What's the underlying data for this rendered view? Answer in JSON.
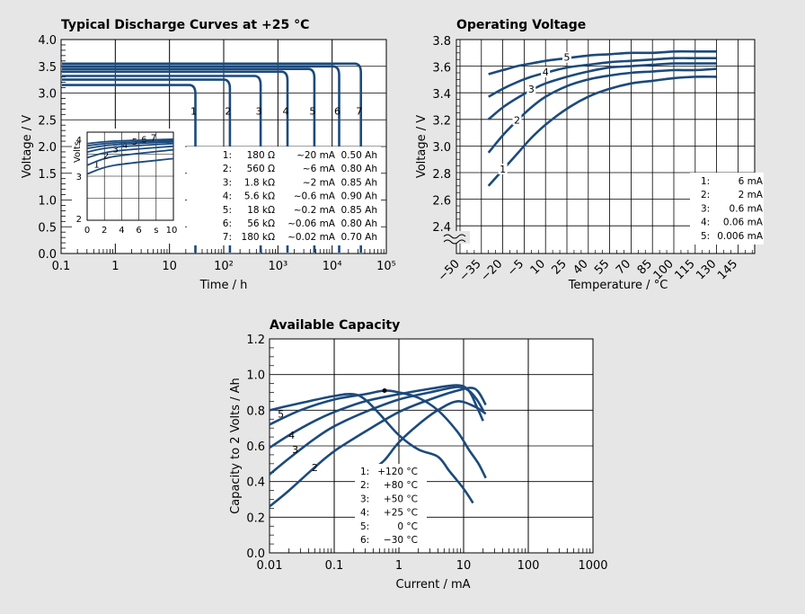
{
  "chart_data": [
    {
      "type": "line",
      "title": "Typical Discharge Curves at +25 °C",
      "xlabel": "Time / h",
      "ylabel": "Voltage / V",
      "xscale": "log",
      "xlim": [
        0.1,
        100000
      ],
      "ylim": [
        0.0,
        4.0
      ],
      "xticks": [
        "0.1",
        "1",
        "10",
        "10²",
        "10³",
        "10⁴",
        "10⁵"
      ],
      "yticks": [
        "0.0",
        "0.5",
        "1.0",
        "1.5",
        "2.0",
        "2.5",
        "3.0",
        "3.5",
        "4.0"
      ],
      "series": [
        {
          "name": "1",
          "plateau_v": 3.15,
          "end_h": 30
        },
        {
          "name": "2",
          "plateau_v": 3.25,
          "end_h": 130
        },
        {
          "name": "3",
          "plateau_v": 3.32,
          "end_h": 480
        },
        {
          "name": "4",
          "plateau_v": 3.4,
          "end_h": 1500
        },
        {
          "name": "5",
          "plateau_v": 3.45,
          "end_h": 4700
        },
        {
          "name": "6",
          "plateau_v": 3.5,
          "end_h": 13500
        },
        {
          "name": "7",
          "plateau_v": 3.55,
          "end_h": 34000
        }
      ],
      "legend": [
        {
          "n": "1:",
          "load": "180 Ω",
          "current": "~20 mA",
          "capacity": "0.50 Ah"
        },
        {
          "n": "2:",
          "load": "560 Ω",
          "current": "~6 mA",
          "capacity": "0.80 Ah"
        },
        {
          "n": "3:",
          "load": "1.8 kΩ",
          "current": "~2 mA",
          "capacity": "0.85 Ah"
        },
        {
          "n": "4:",
          "load": "5.6 kΩ",
          "current": "~0.6 mA",
          "capacity": "0.90 Ah"
        },
        {
          "n": "5:",
          "load": "18 kΩ",
          "current": "~0.2 mA",
          "capacity": "0.85 Ah"
        },
        {
          "n": "6:",
          "load": "56 kΩ",
          "current": "~0.06 mA",
          "capacity": "0.80 Ah"
        },
        {
          "n": "7:",
          "load": "180 kΩ",
          "current": "~0.02 mA",
          "capacity": "0.70 Ah"
        }
      ],
      "legend_position": "bottom-right",
      "inset": {
        "ylabel": "Volts",
        "xunit": "s",
        "xticks": [
          "0",
          "2",
          "4",
          "6",
          "10"
        ],
        "yticks": [
          "2",
          "3",
          "4"
        ],
        "xlim": [
          0,
          10
        ],
        "ylim": [
          2,
          4
        ],
        "series": [
          {
            "name": "1",
            "y": [
              3.05,
              3.4
            ]
          },
          {
            "name": "2",
            "y": [
              3.25,
              3.6
            ]
          },
          {
            "name": "3",
            "y": [
              3.42,
              3.68
            ]
          },
          {
            "name": "4",
            "y": [
              3.55,
              3.74
            ]
          },
          {
            "name": "5",
            "y": [
              3.63,
              3.78
            ]
          },
          {
            "name": "6",
            "y": [
              3.69,
              3.81
            ]
          },
          {
            "name": "7",
            "y": [
              3.74,
              3.84
            ]
          }
        ]
      }
    },
    {
      "type": "line",
      "title": "Operating Voltage",
      "xlabel": "Temperature / °C",
      "ylabel": "Voltage / V",
      "xlim": [
        -50,
        145
      ],
      "ylim": [
        2.4,
        3.8
      ],
      "axis_break": true,
      "xticks": [
        "−50",
        "−35",
        "−20",
        "−5",
        "10",
        "25",
        "40",
        "55",
        "70",
        "85",
        "100",
        "115",
        "130",
        "145"
      ],
      "yticks": [
        "2.4",
        "2.6",
        "2.8",
        "3.0",
        "3.2",
        "3.4",
        "3.6",
        "3.8"
      ],
      "series": [
        {
          "name": "1",
          "x": [
            -30,
            -20,
            -10,
            0,
            10,
            25,
            40,
            55,
            70,
            85,
            100,
            115,
            130
          ],
          "y": [
            2.7,
            2.82,
            2.94,
            3.06,
            3.16,
            3.28,
            3.37,
            3.43,
            3.47,
            3.49,
            3.51,
            3.52,
            3.52
          ]
        },
        {
          "name": "2",
          "x": [
            -30,
            -20,
            -10,
            0,
            10,
            25,
            40,
            55,
            70,
            85,
            100,
            115,
            130
          ],
          "y": [
            2.95,
            3.08,
            3.19,
            3.29,
            3.37,
            3.45,
            3.5,
            3.53,
            3.55,
            3.56,
            3.57,
            3.57,
            3.58
          ]
        },
        {
          "name": "3",
          "x": [
            -30,
            -20,
            -10,
            0,
            10,
            25,
            40,
            55,
            70,
            85,
            100,
            115,
            130
          ],
          "y": [
            3.2,
            3.29,
            3.36,
            3.42,
            3.47,
            3.52,
            3.56,
            3.59,
            3.6,
            3.61,
            3.62,
            3.62,
            3.62
          ]
        },
        {
          "name": "4",
          "x": [
            -30,
            -20,
            -10,
            0,
            10,
            25,
            40,
            55,
            70,
            85,
            100,
            115,
            130
          ],
          "y": [
            3.37,
            3.43,
            3.48,
            3.52,
            3.55,
            3.59,
            3.61,
            3.63,
            3.64,
            3.65,
            3.66,
            3.66,
            3.66
          ]
        },
        {
          "name": "5",
          "x": [
            -30,
            -20,
            -10,
            0,
            10,
            25,
            40,
            55,
            70,
            85,
            100,
            115,
            130
          ],
          "y": [
            3.54,
            3.57,
            3.6,
            3.62,
            3.64,
            3.66,
            3.68,
            3.69,
            3.7,
            3.7,
            3.71,
            3.71,
            3.71
          ]
        }
      ],
      "legend": [
        {
          "n": "1:",
          "current": "6 mA"
        },
        {
          "n": "2:",
          "current": "2 mA"
        },
        {
          "n": "3:",
          "current": "0.6 mA"
        },
        {
          "n": "4:",
          "current": "0.06 mA"
        },
        {
          "n": "5:",
          "current": "0.006 mA"
        }
      ],
      "legend_position": "bottom-right"
    },
    {
      "type": "line",
      "title": "Available Capacity",
      "xlabel": "Current / mA",
      "ylabel": "Capacity to 2 Volts / Ah",
      "xscale": "log",
      "xlim": [
        0.01,
        1000
      ],
      "ylim": [
        0.0,
        1.2
      ],
      "xticks": [
        "0.01",
        "0.1",
        "1",
        "10",
        "100",
        "1000"
      ],
      "yticks": [
        "0.0",
        "0.2",
        "0.4",
        "0.6",
        "0.8",
        "1.0",
        "1.2"
      ],
      "series": [
        {
          "name": "1",
          "x": [
            0.4,
            0.6,
            1,
            2,
            4,
            8,
            15,
            22
          ],
          "y": [
            0.47,
            0.52,
            0.62,
            0.72,
            0.8,
            0.85,
            0.82,
            0.78
          ]
        },
        {
          "name": "2",
          "x": [
            0.01,
            0.02,
            0.05,
            0.1,
            0.3,
            1,
            3,
            8,
            15,
            22
          ],
          "y": [
            0.26,
            0.35,
            0.48,
            0.57,
            0.68,
            0.79,
            0.86,
            0.91,
            0.92,
            0.83
          ]
        },
        {
          "name": "3",
          "x": [
            0.01,
            0.02,
            0.05,
            0.1,
            0.3,
            1,
            3,
            8,
            12,
            16,
            20
          ],
          "y": [
            0.44,
            0.53,
            0.64,
            0.71,
            0.79,
            0.86,
            0.9,
            0.93,
            0.91,
            0.86,
            0.8
          ]
        },
        {
          "name": "4",
          "x": [
            0.01,
            0.02,
            0.05,
            0.1,
            0.3,
            1,
            3,
            8,
            12,
            16,
            20
          ],
          "y": [
            0.59,
            0.66,
            0.74,
            0.79,
            0.85,
            0.89,
            0.92,
            0.94,
            0.91,
            0.82,
            0.74
          ]
        },
        {
          "name": "5",
          "x": [
            0.01,
            0.03,
            0.1,
            0.3,
            0.6,
            1,
            2,
            4,
            8,
            12,
            17,
            22
          ],
          "y": [
            0.72,
            0.8,
            0.86,
            0.89,
            0.91,
            0.9,
            0.87,
            0.8,
            0.68,
            0.58,
            0.5,
            0.42
          ]
        },
        {
          "name": "6",
          "x": [
            0.01,
            0.03,
            0.1,
            0.2,
            0.3,
            0.5,
            1,
            2,
            4,
            6,
            10,
            14
          ],
          "y": [
            0.8,
            0.84,
            0.88,
            0.89,
            0.86,
            0.78,
            0.66,
            0.58,
            0.54,
            0.46,
            0.36,
            0.28
          ]
        }
      ],
      "legend": [
        {
          "n": "1:",
          "temp": "+120 °C"
        },
        {
          "n": "2:",
          "temp": "+80 °C"
        },
        {
          "n": "3:",
          "temp": "+50 °C"
        },
        {
          "n": "4:",
          "temp": "+25 °C"
        },
        {
          "n": "5:",
          "temp": "0 °C"
        },
        {
          "n": "6:",
          "temp": "−30 °C"
        }
      ],
      "legend_position": "bottom-center"
    }
  ],
  "colors": {
    "background": "#e6e6e6",
    "plot_background": "#ffffff",
    "curve": "#1c4a7c",
    "grid": "#000000"
  }
}
